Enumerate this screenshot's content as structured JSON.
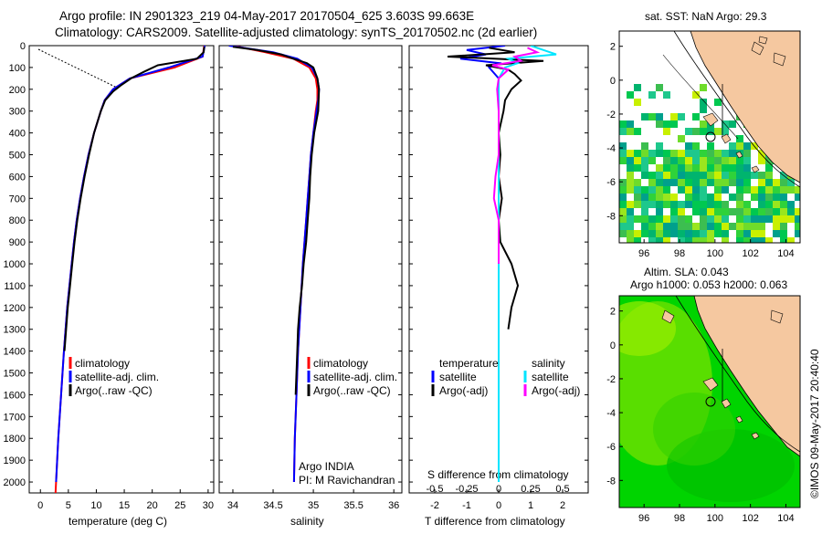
{
  "title": {
    "line1": "Argo profile: IN 2901323_219 04-May-2017 20170504_625 3.603S 99.663E",
    "line2": "Climatology: CARS2009. Satellite-adjusted climatology: synTS_20170502.nc (2d earlier)"
  },
  "colors": {
    "climatology": "#ff0000",
    "satellite": "#0000ff",
    "argo": "#000000",
    "sal_satellite": "#00e5ff",
    "sal_argo": "#ff00ff",
    "land": "#f5c8a0"
  },
  "depth_axis": {
    "ticks": [
      "0",
      "100",
      "200",
      "300",
      "400",
      "500",
      "600",
      "700",
      "800",
      "900",
      "1000",
      "1100",
      "1200",
      "1300",
      "1400",
      "1500",
      "1600",
      "1700",
      "1800",
      "1900",
      "2000"
    ]
  },
  "panels": {
    "temp": {
      "xlabel": "temperature (deg C)",
      "xticks": [
        "0",
        "5",
        "10",
        "15",
        "20",
        "25",
        "30"
      ],
      "legend": [
        "climatology",
        "satellite-adj. clim.",
        "Argo(..raw -QC)"
      ]
    },
    "sal": {
      "xlabel": "salinity",
      "xticks": [
        "34",
        "34.5",
        "35",
        "35.5",
        "36"
      ],
      "legend": [
        "climatology",
        "satellite-adj. clim.",
        "Argo(..raw -QC)"
      ],
      "note1": "Argo INDIA",
      "note2": "PI: M Ravichandran"
    },
    "diff": {
      "xlabel": "T difference from climatology",
      "top_label": "S difference from climatology",
      "xticks_bottom": [
        "-2",
        "-1",
        "0",
        "1",
        "2"
      ],
      "xticks_top": [
        "-0.5",
        "-0.25",
        "0",
        "0.25",
        "0.5"
      ],
      "legend_t_title": "temperature",
      "legend_t": [
        "satellite",
        "Argo(-adj)"
      ],
      "legend_s_title": "salinity",
      "legend_s": [
        "satellite",
        "Argo(-adj)"
      ]
    }
  },
  "maps": {
    "sst_title": "sat. SST: NaN Argo: 29.3",
    "sla_title1": "Altim. SLA: 0.043",
    "sla_title2": "Argo h1000: 0.053 h2000: 0.063",
    "yticks": [
      "2",
      "0",
      "-2",
      "-4",
      "-6",
      "-8"
    ],
    "xticks": [
      "96",
      "98",
      "100",
      "102",
      "104"
    ],
    "credit": "©IMOS 09-May-2017 20:40:40"
  },
  "chart_data": [
    {
      "type": "line",
      "title": "temperature profile",
      "xlabel": "temperature (deg C)",
      "ylabel": "",
      "xlim": [
        -2,
        31
      ],
      "ylim": [
        2050,
        0
      ],
      "series": [
        {
          "name": "climatology",
          "depth": [
            0,
            50,
            100,
            150,
            200,
            250,
            300,
            400,
            500,
            600,
            700,
            800,
            900,
            1000,
            1200,
            1400,
            1600,
            1800,
            2000,
            2050
          ],
          "values": [
            29.3,
            29.0,
            24.0,
            16.0,
            13.0,
            11.5,
            10.8,
            9.6,
            8.6,
            7.8,
            7.1,
            6.5,
            6.0,
            5.6,
            4.8,
            4.2,
            3.7,
            3.2,
            2.8,
            2.7
          ]
        },
        {
          "name": "satellite-adj. clim.",
          "depth": [
            0,
            50,
            100,
            150,
            200,
            250,
            300,
            400,
            500,
            600,
            700,
            800,
            900,
            1000,
            1200,
            1400,
            1600,
            1800,
            2000
          ],
          "values": [
            29.4,
            29.0,
            23.0,
            16.0,
            13.0,
            11.5,
            10.8,
            9.6,
            8.6,
            7.8,
            7.1,
            6.5,
            6.0,
            5.6,
            4.8,
            4.2,
            3.7,
            3.2,
            2.8
          ]
        },
        {
          "name": "Argo(..raw -QC)",
          "depth": [
            5,
            30,
            60,
            90,
            120,
            150,
            180,
            210,
            250,
            300,
            400,
            500,
            600,
            700,
            800,
            900,
            1000,
            1100,
            1200,
            1300,
            1400
          ],
          "values": [
            29.3,
            29.2,
            28.0,
            21.0,
            18.5,
            16.2,
            14.5,
            13.0,
            11.6,
            10.8,
            9.6,
            8.7,
            7.9,
            7.2,
            6.6,
            6.1,
            5.7,
            5.3,
            4.9,
            4.6,
            4.3
          ]
        }
      ]
    },
    {
      "type": "line",
      "title": "salinity profile",
      "xlabel": "salinity",
      "ylabel": "",
      "xlim": [
        33.83,
        36.1
      ],
      "ylim": [
        2050,
        0
      ],
      "series": [
        {
          "name": "climatology",
          "depth": [
            0,
            30,
            60,
            100,
            150,
            200,
            250,
            300,
            400,
            500,
            600,
            700,
            800,
            900,
            1000,
            1200,
            1400,
            1600,
            1800,
            2000
          ],
          "values": [
            34.0,
            34.4,
            34.75,
            34.95,
            35.03,
            35.05,
            35.05,
            35.03,
            35.0,
            34.97,
            34.95,
            34.93,
            34.91,
            34.89,
            34.87,
            34.84,
            34.81,
            34.79,
            34.77,
            34.76
          ]
        },
        {
          "name": "satellite-adj. clim.",
          "depth": [
            0,
            30,
            60,
            100,
            150,
            200,
            250,
            300,
            400,
            500,
            600,
            700,
            800,
            900,
            1000,
            1200,
            1400,
            1600,
            1800,
            2000
          ],
          "values": [
            33.95,
            34.5,
            34.8,
            34.98,
            35.05,
            35.07,
            35.06,
            35.04,
            35.0,
            34.97,
            34.95,
            34.93,
            34.91,
            34.89,
            34.87,
            34.84,
            34.81,
            34.79,
            34.77,
            34.76
          ]
        },
        {
          "name": "Argo(..raw -QC)",
          "depth": [
            5,
            20,
            40,
            60,
            80,
            100,
            150,
            200,
            300,
            400,
            500,
            600,
            700,
            800,
            900,
            1000,
            1100,
            1200,
            1300,
            1400,
            1500,
            1600
          ],
          "values": [
            34.0,
            34.3,
            34.6,
            34.75,
            34.92,
            35.0,
            35.05,
            35.07,
            35.06,
            35.01,
            34.98,
            34.96,
            34.95,
            34.93,
            34.91,
            34.88,
            34.86,
            34.83,
            34.81,
            34.8,
            34.79,
            34.78
          ]
        }
      ]
    },
    {
      "type": "line",
      "title": "difference from climatology",
      "xlabel": "T difference from climatology",
      "ylabel": "",
      "xlim": [
        -2.8,
        2.8
      ],
      "ylim": [
        2050,
        0
      ],
      "series": [
        {
          "name": "temperature satellite",
          "depth": [
            0,
            20,
            40,
            60,
            80,
            100,
            150,
            200,
            300,
            500,
            1000,
            1500,
            2000
          ],
          "values": [
            0.2,
            -1.0,
            -0.4,
            -1.2,
            0.0,
            -0.3,
            0.0,
            0.0,
            0.0,
            0.0,
            0.0,
            0.0,
            0.0
          ]
        },
        {
          "name": "temperature Argo(-adj)",
          "depth": [
            10,
            30,
            50,
            70,
            90,
            110,
            130,
            160,
            200,
            250,
            300,
            400,
            500,
            600,
            700,
            800,
            900,
            1000,
            1100,
            1200,
            1300
          ],
          "values": [
            -0.3,
            0.5,
            -1.6,
            1.4,
            -0.4,
            0.3,
            0.5,
            0.7,
            0.4,
            0.2,
            0.15,
            0.0,
            0.05,
            0.0,
            0.1,
            0.0,
            0.05,
            0.4,
            0.6,
            0.4,
            0.3
          ]
        },
        {
          "name": "salinity satellite",
          "depth": [
            0,
            20,
            40,
            60,
            80,
            100,
            150,
            200,
            500,
            1000,
            1500,
            2000
          ],
          "values": [
            1.0,
            1.4,
            1.8,
            0.3,
            0.6,
            0.2,
            0.0,
            0.0,
            0.0,
            0.0,
            0.0,
            0.0
          ]
        },
        {
          "name": "salinity Argo(-adj)",
          "depth": [
            10,
            30,
            50,
            70,
            90,
            110,
            150,
            200,
            300,
            500,
            600,
            700,
            800,
            900,
            1000
          ],
          "values": [
            0.9,
            1.2,
            0.5,
            0.7,
            -0.2,
            0.3,
            0.0,
            -0.05,
            0.0,
            0.0,
            -0.1,
            -0.15,
            0.0,
            0.0,
            0.0
          ]
        }
      ]
    }
  ]
}
